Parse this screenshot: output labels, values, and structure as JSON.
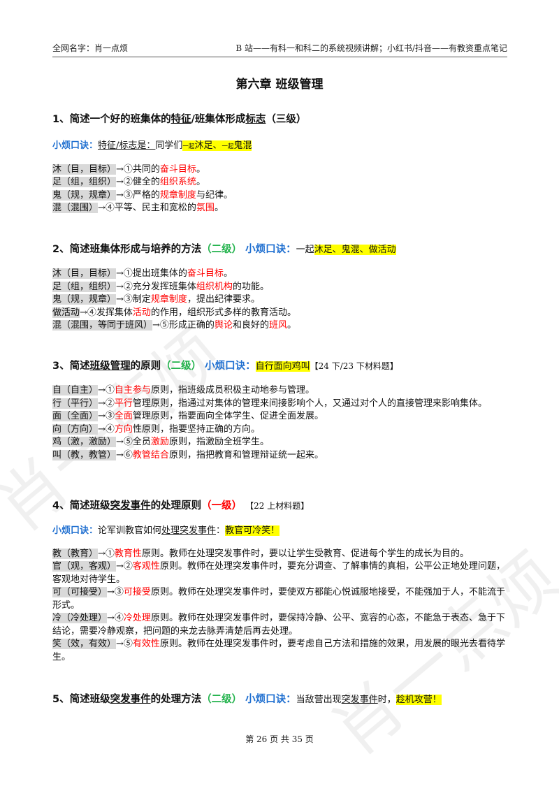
{
  "header": {
    "left": "全网名字：肖一点烦",
    "right": "B 站——有科一和科二的系统视频讲解；小红书/抖音——有教资重点笔记"
  },
  "title": "第六章  班级管理",
  "s1": {
    "h_a": "1、简述一个好的班集体的",
    "h_b": "特征",
    "h_c": "/班集体形成",
    "h_d": "标志",
    "h_e": "（三级）",
    "k_label": "小烦口诀：",
    "k_a": "特征/标志是：",
    "k_b": "同学们",
    "k_c1": "一起",
    "k_c2": "沐足、",
    "k_c3": "一起",
    "k_c4": "鬼混",
    "items": [
      {
        "key": "沐（目，目标）",
        "t1": "→①共同的",
        "red": "奋斗目标",
        "t2": "。"
      },
      {
        "key": "足（组，组织）",
        "t1": "→②健全的",
        "red": "组织系统",
        "t2": "。"
      },
      {
        "key": "鬼（规，规章）",
        "t1": "→③严格的",
        "red": "规章制度",
        "t2": "与纪律。"
      },
      {
        "key": "混（混围）",
        "t1": "→④平等、民主和宽松的",
        "red": "氛围",
        "t2": "。"
      }
    ]
  },
  "s2": {
    "h_a": "2、简述班集体形成与培养的方法",
    "h_g": "（二级）",
    "k_label": "小烦口诀：",
    "k_a": "一起",
    "k_b": "沐足、鬼混、做活动",
    "items": [
      {
        "key": "沐（目，目标）",
        "t1": "→①提出班集体的",
        "red": "奋斗目标",
        "t2": "。"
      },
      {
        "key": "足（组，组织）",
        "t1": "→②充分发挥班集体",
        "red": "组织机构",
        "t2": "的功能。"
      },
      {
        "key": "鬼（规，规章）",
        "t1": "→③制定",
        "red": "规章制度",
        "t2": "，提出纪律要求。"
      },
      {
        "key": "做活动",
        "t1": "→④发挥集体",
        "red": "活动",
        "t2": "的作用，组织形式多样的教育活动。"
      },
      {
        "key": "混（混围，等同于班风）",
        "t1": "→⑤形成正确的",
        "red": "舆论",
        "t2": "和良好的",
        "red2": "班风",
        "t3": "。"
      }
    ]
  },
  "s3": {
    "h_a": "3、简述",
    "h_b": "班级管理",
    "h_c": "的原则",
    "h_g": "（二级）",
    "k_label": "小烦口诀：",
    "k_a": "自行面向鸡叫",
    "tag": "【24 下/23 下材料题】",
    "items": [
      {
        "key": "自（自主）",
        "t1": "→①",
        "red": "自主参与",
        "t2": "原则，指班级成员积极主动地参与管理。"
      },
      {
        "key": "行（平行）",
        "t1": "→②",
        "red": "平行",
        "t2": "管理原则，指通过对集体的管理来间接影响个人，又通过对个人的直接管理来影响集体。"
      },
      {
        "key": "面（全面）",
        "t1": "→③",
        "red": "全面",
        "t2": "管理原则，指要面向全体学生、促进全面发展。"
      },
      {
        "key": "向（方向）",
        "t1": "→④",
        "red": "方向",
        "t2": "性原则，指要坚持正确的方向。"
      },
      {
        "key": "鸡（激，激励）",
        "t1": "→⑤全员",
        "red": "激励",
        "t2": "原则，指激励全班学生。"
      },
      {
        "key": "叫（教，教管）",
        "t1": "→⑥",
        "red": "教管结合",
        "t2": "原则，指把教育和管理辩证统一起来。"
      }
    ]
  },
  "s4": {
    "h_a": "4、简述班级",
    "h_b": "突发事件",
    "h_c": "的处理原则",
    "h_r": "（一级）",
    "tag": "【22 上材料题】",
    "k_label": "小烦口诀：",
    "k_a": "论军训教官如何",
    "k_b": "处理突发事件",
    "k_c": "：",
    "k_d": "教官可冷笑！",
    "items": [
      {
        "key": "教（教育）",
        "t1": "→①",
        "red": "教育性",
        "t2": "原则。教师在处理突发事件时，要以让学生受教育、促进每个学生的成长为目的。"
      },
      {
        "key": "官（观，客观）",
        "t1": "→②",
        "red": "客观性",
        "t2": "原则。教师在处理突发事件时，要充分调查、了解事情的真相，公平公正地处理问题，客观地对待学生。"
      },
      {
        "key": "可（可接受）",
        "t1": "→③",
        "red": "可接受",
        "t2": "原则。教师在处理突发事件时，要使双方都能心悦诚服地接受，不能强加于人，不能流于形式。"
      },
      {
        "key": "冷（冷处理）",
        "t1": "→④",
        "red": "冷处理",
        "t2": "原则。教师在处理突发事件时，要保持冷静、公平、宽容的心态，不能急于表态、急于下结论，需要冷静观察，把问题的来龙去脉弄清楚后再去处理。"
      },
      {
        "key": "笑（效，有效）",
        "t1": "→⑤",
        "red": "有效性",
        "t2": "原则。教师在处理突发事件时，要考虑自己方法和措施的效果，用发展的眼光去看待学生。"
      }
    ]
  },
  "s5": {
    "h_a": "5、简述班级",
    "h_b": "突发事件",
    "h_c": "的处理方法",
    "h_g": "（二级）",
    "k_label": "小烦口诀：",
    "k_a": "当敌营出现",
    "k_b": "突发事件",
    "k_c": "时，",
    "k_d": "趁机攻营！"
  },
  "footer": "第 26 页 共 35 页",
  "watermark": "肖一点烦"
}
